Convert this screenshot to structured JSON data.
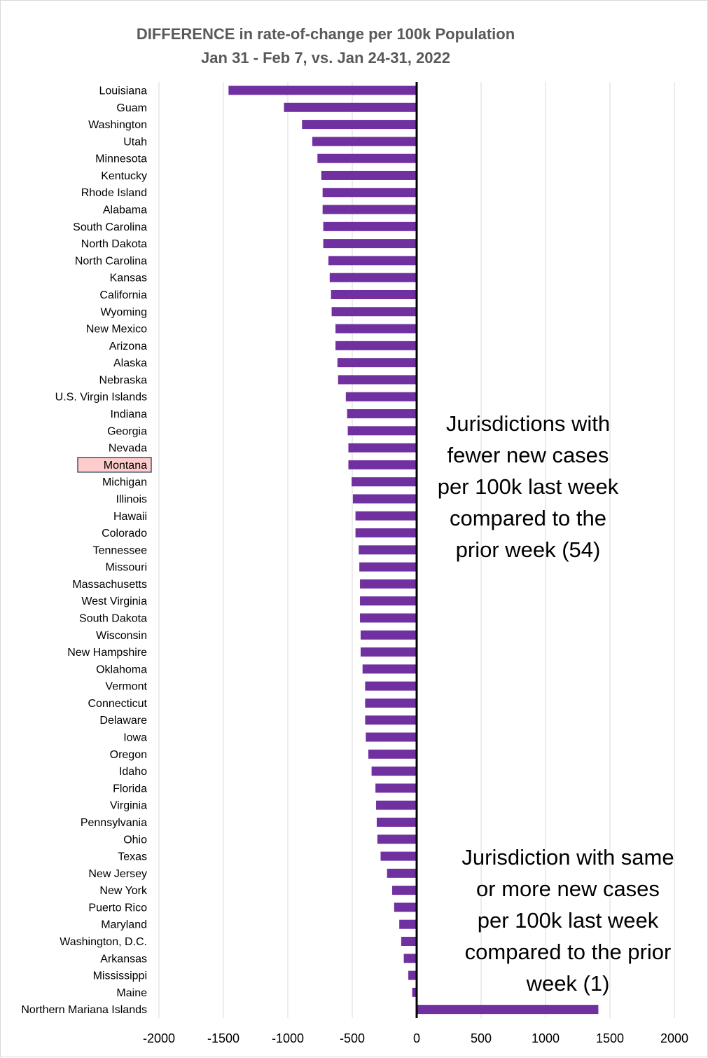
{
  "chart_data": {
    "type": "bar",
    "orientation": "horizontal",
    "title_line1": "DIFFERENCE in rate-of-change per 100k Population",
    "title_line2": "Jan 31 - Feb 7, vs. Jan 24-31, 2022",
    "xlabel": "",
    "ylabel": "",
    "xlim": [
      -2000,
      2000
    ],
    "x_ticks": [
      -2000,
      -1500,
      -1000,
      -500,
      0,
      500,
      1000,
      1500,
      2000
    ],
    "x_tick_labels": [
      "-2000",
      "-1500",
      "-1000",
      "-500",
      "0",
      "500",
      "1000",
      "1500",
      "2000"
    ],
    "grid": "vertical",
    "bar_color": "#7030a0",
    "highlight_label_fill": "#ffcccc",
    "highlight_label_border": "#44546a",
    "highlighted_category": "Montana",
    "categories": [
      "Louisiana",
      "Guam",
      "Washington",
      "Utah",
      "Minnesota",
      "Kentucky",
      "Rhode Island",
      "Alabama",
      "South Carolina",
      "North Dakota",
      "North Carolina",
      "Kansas",
      "California",
      "Wyoming",
      "New Mexico",
      "Arizona",
      "Alaska",
      "Nebraska",
      "U.S. Virgin Islands",
      "Indiana",
      "Georgia",
      "Nevada",
      "Montana",
      "Michigan",
      "Illinois",
      "Hawaii",
      "Colorado",
      "Tennessee",
      "Missouri",
      "Massachusetts",
      "West Virginia",
      "South Dakota",
      "Wisconsin",
      "New Hampshire",
      "Oklahoma",
      "Vermont",
      "Connecticut",
      "Delaware",
      "Iowa",
      "Oregon",
      "Idaho",
      "Florida",
      "Virginia",
      "Pennsylvania",
      "Ohio",
      "Texas",
      "New Jersey",
      "New York",
      "Puerto Rico",
      "Maryland",
      "Washington, D.C.",
      "Arkansas",
      "Mississippi",
      "Maine",
      "Northern Mariana Islands"
    ],
    "values": [
      -1460,
      -1030,
      -890,
      -810,
      -770,
      -740,
      -730,
      -730,
      -725,
      -725,
      -685,
      -675,
      -665,
      -660,
      -630,
      -630,
      -615,
      -610,
      -550,
      -540,
      -535,
      -530,
      -530,
      -505,
      -495,
      -475,
      -475,
      -450,
      -445,
      -440,
      -440,
      -440,
      -435,
      -435,
      -420,
      -400,
      -400,
      -400,
      -395,
      -375,
      -350,
      -320,
      -315,
      -310,
      -305,
      -280,
      -230,
      -190,
      -175,
      -135,
      -120,
      -100,
      -65,
      -35,
      1410
    ],
    "annotations": [
      {
        "lines": [
          "Jurisdictions with",
          "fewer new cases",
          "per 100k last week",
          "compared to the",
          "prior week (54)"
        ]
      },
      {
        "lines": [
          "Jurisdiction with same",
          "or more new cases",
          "per 100k last week",
          "compared to the prior",
          "week (1)"
        ]
      }
    ]
  }
}
